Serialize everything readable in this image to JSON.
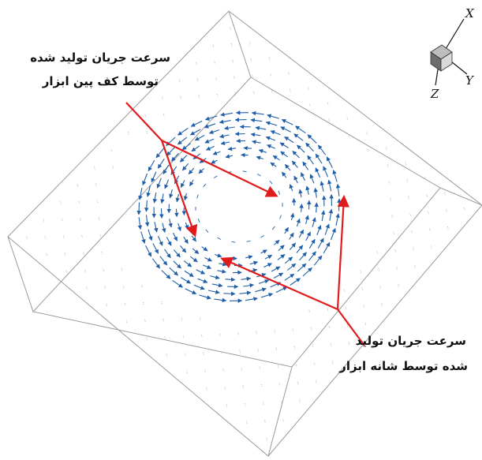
{
  "labels": {
    "pin_bottom": {
      "line1": "سرعت جریان تولید شده",
      "line2": "توسط کف پین ابزار"
    },
    "shoulder": {
      "line1": "سرعت جریان تولید",
      "line2": "شده توسط شانه ابزار"
    }
  },
  "axes": {
    "x": "X",
    "y": "Y",
    "z": "Z"
  },
  "colors": {
    "vectors": "#1f5ea8",
    "background_vectors": "#b9b9b9",
    "box_edges": "#9a9a9a",
    "callout_lines": "#e01b1b"
  }
}
